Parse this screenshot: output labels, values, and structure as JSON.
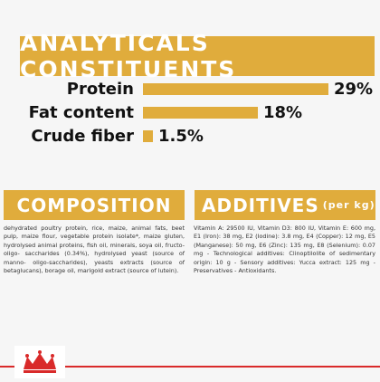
{
  "banner": {
    "title": "ANALYTICALS CONSTITUENTS"
  },
  "constituents": [
    {
      "label": "Protein",
      "value": "29%",
      "fraction": 0.29
    },
    {
      "label": "Fat content",
      "value": "18%",
      "fraction": 0.18
    },
    {
      "label": "Crude fiber",
      "value": "1.5%",
      "fraction": 0.015
    }
  ],
  "composition": {
    "title": "COMPOSITION",
    "text": "dehydrated poultry protein, rice, maize, animal fats, beet pulp, maize flour, vegetable protein isolate*, maize gluten, hydrolysed animal proteins, fish oil, minerals, soya oil, fructo-oligo- saccharides (0.34%), hydrolysed yeast (source of manno- oligo-saccharides), yeasts extracts (source of betaglucans), borage oil, marigold extract (source of lutein)."
  },
  "additives": {
    "title": "ADDITIVES",
    "unit": "(per kg)",
    "text": "Vitamin A: 29500 IU, Vitamin D3: 800 IU, Vitamin E: 600 mg, E1 (Iron): 38 mg, E2 (Iodine): 3.8 mg, E4 (Copper): 12 mg, E5 (Manganese): 50 mg, E6 (Zinc): 135 mg, E8 (Selenium): 0.07 mg - Technological additives: Clinoptilolite of sedimentary origin: 10 g - Sensory additives: Yucca extract: 125 mg - Preservatives - Antioxidants."
  },
  "colors": {
    "accent": "#e0ac3c",
    "brand_red": "#d92a2a"
  },
  "logo": {
    "name": "royal-canin-crown-logo"
  }
}
